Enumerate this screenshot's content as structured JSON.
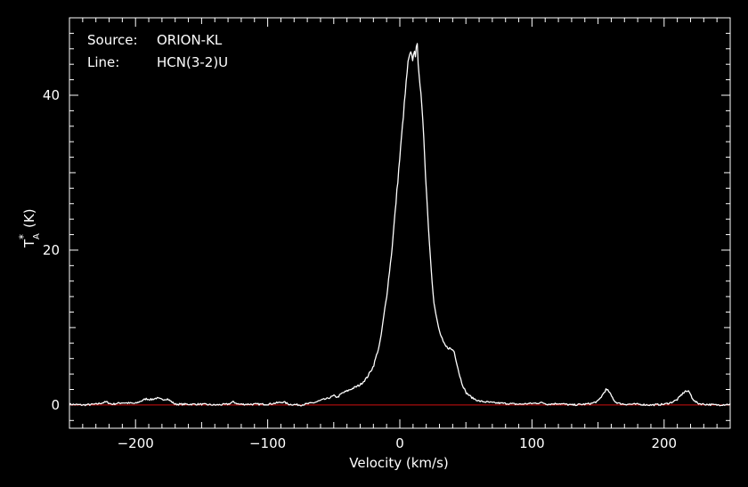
{
  "chart_data": {
    "type": "line",
    "annotations": [
      {
        "key": "Source:",
        "value": "ORION-KL"
      },
      {
        "key": "Line:",
        "value": "HCN(3-2)U"
      }
    ],
    "xlabel": "Velocity (km/s)",
    "ylabel_main": "T",
    "ylabel_sup": "*",
    "ylabel_sub": "A",
    "ylabel_unit": "(K)",
    "xlim": [
      -250,
      250
    ],
    "ylim": [
      -3,
      50
    ],
    "x_ticks": [
      -200,
      -100,
      0,
      100,
      200
    ],
    "x_tick_labels": [
      "−200",
      "−100",
      "0",
      "100",
      "200"
    ],
    "y_ticks": [
      0,
      20,
      40
    ],
    "y_tick_labels": [
      "0",
      "20",
      "40"
    ],
    "baseline": 0,
    "grid": false,
    "colors": {
      "background": "#000000",
      "frame": "#ffffff",
      "spectrum": "#ffffff",
      "baseline": "#d01010"
    },
    "series": [
      {
        "x": [
          -250,
          -240,
          -230,
          -222,
          -218,
          -210,
          -200,
          -192,
          -188,
          -184,
          -180,
          -176,
          -170,
          -160,
          -150,
          -140,
          -130,
          -126,
          -122,
          -110,
          -100,
          -92,
          -88,
          -84,
          -75,
          -65,
          -58,
          -55,
          -50,
          -47,
          -44,
          -40,
          -35,
          -30,
          -25,
          -20,
          -15,
          -10,
          -6,
          -2,
          2,
          4,
          6,
          8,
          10,
          11,
          12,
          13,
          14,
          16,
          18,
          20,
          22,
          24,
          26,
          28,
          30,
          33,
          35,
          38,
          41,
          43,
          45,
          47,
          50,
          55,
          60,
          65,
          70,
          80,
          90,
          100,
          108,
          112,
          120,
          130,
          140,
          145,
          150,
          153,
          156,
          158,
          160,
          163,
          166,
          170,
          180,
          190,
          200,
          205,
          210,
          213,
          216,
          219,
          221,
          223,
          226,
          230,
          240,
          250
        ],
        "y": [
          0.1,
          0,
          0.1,
          0.4,
          0.1,
          0.3,
          0.2,
          0.8,
          0.7,
          0.9,
          0.7,
          0.8,
          0.1,
          0.1,
          0.1,
          0,
          0.1,
          0.4,
          0.1,
          0.1,
          0.1,
          0.3,
          0.4,
          0.1,
          0,
          0.3,
          0.7,
          0.8,
          1.2,
          1.0,
          1.5,
          1.8,
          2.2,
          2.6,
          3.5,
          5.0,
          8.0,
          14.0,
          20.0,
          28.0,
          36.0,
          40.0,
          44.0,
          45.5,
          44.5,
          46.0,
          45.0,
          47.0,
          44.0,
          40.0,
          35.0,
          28.0,
          22.0,
          17.0,
          13.0,
          11.0,
          9.5,
          8.0,
          7.5,
          7.3,
          7.0,
          5.5,
          4.0,
          2.8,
          1.6,
          0.9,
          0.5,
          0.4,
          0.3,
          0.2,
          0.1,
          0.2,
          0.3,
          0.1,
          0.2,
          0,
          0.1,
          0.2,
          0.5,
          1.2,
          2.0,
          1.8,
          1.2,
          0.4,
          0.2,
          0.1,
          0.1,
          0,
          0.1,
          0.3,
          0.7,
          1.3,
          1.8,
          1.7,
          1.0,
          0.5,
          0.2,
          0.1,
          0,
          0.1
        ]
      }
    ]
  }
}
